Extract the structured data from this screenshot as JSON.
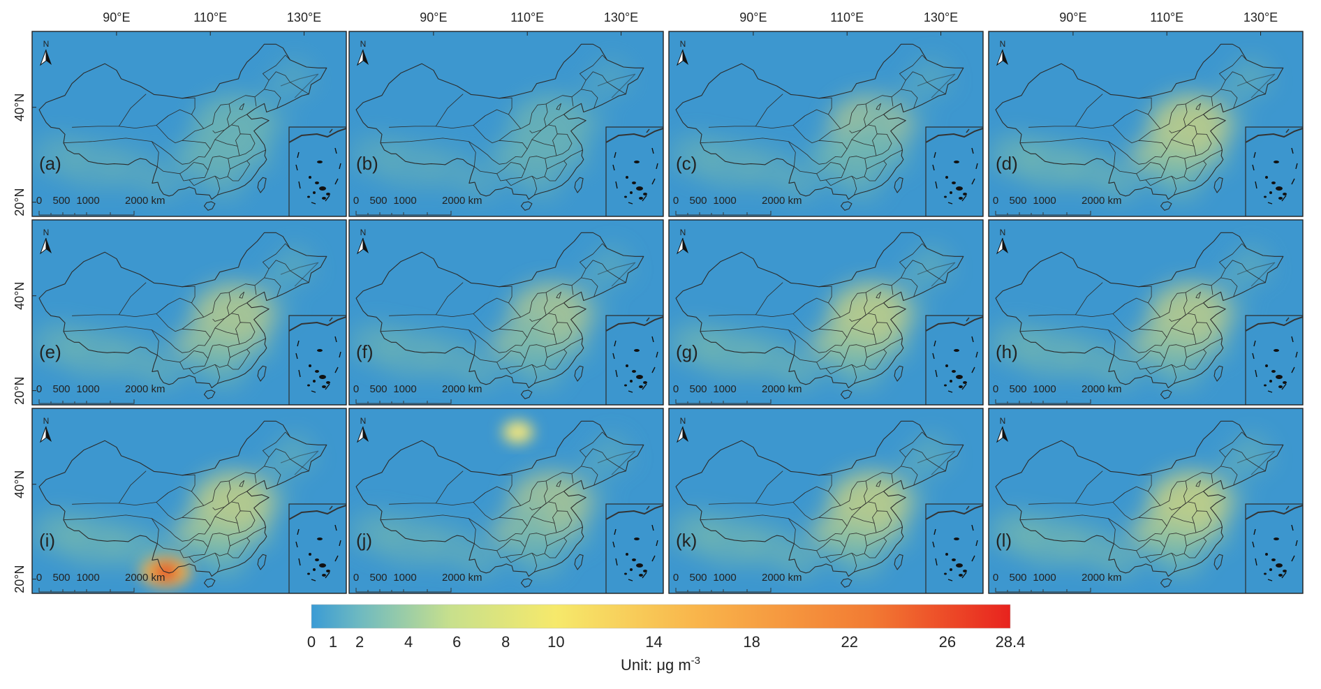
{
  "figure": {
    "lon_ticks": [
      "90°E",
      "110°E",
      "130°E"
    ],
    "lat_ticks": [
      "40°N",
      "20°N"
    ],
    "north_label": "N",
    "scale_bar": {
      "labels": [
        "0",
        "500",
        "1000",
        "2000 km"
      ]
    },
    "panels": [
      {
        "label": "(a)",
        "intensity": 0.3,
        "hotspots": []
      },
      {
        "label": "(b)",
        "intensity": 0.25,
        "hotspots": []
      },
      {
        "label": "(c)",
        "intensity": 0.38,
        "hotspots": []
      },
      {
        "label": "(d)",
        "intensity": 0.55,
        "hotspots": []
      },
      {
        "label": "(e)",
        "intensity": 0.45,
        "hotspots": []
      },
      {
        "label": "(f)",
        "intensity": 0.42,
        "hotspots": []
      },
      {
        "label": "(g)",
        "intensity": 0.55,
        "hotspots": []
      },
      {
        "label": "(h)",
        "intensity": 0.5,
        "hotspots": []
      },
      {
        "label": "(i)",
        "intensity": 0.55,
        "hotspots": [
          {
            "lon": 100.5,
            "lat": 21.5,
            "value": 28.4
          }
        ]
      },
      {
        "label": "(j)",
        "intensity": 0.4,
        "hotspots": [
          {
            "lon": 108,
            "lat": 51,
            "value": 9
          }
        ]
      },
      {
        "label": "(k)",
        "intensity": 0.55,
        "hotspots": []
      },
      {
        "label": "(l)",
        "intensity": 0.6,
        "hotspots": []
      }
    ]
  },
  "colorbar": {
    "min": 0,
    "max": 28.4,
    "tick_labels": [
      "0",
      "1",
      "2",
      "4",
      "6",
      "8",
      "10",
      "14",
      "18",
      "22",
      "26",
      "28.4"
    ],
    "unit_text": "Unit: μg m",
    "unit_superscript": "-3",
    "colors": [
      "#3a9bd5",
      "#7cc2b3",
      "#c9e08a",
      "#f5e96a",
      "#f8b24a",
      "#f07a32",
      "#e8231e"
    ]
  },
  "colors": {
    "sea": "#3d97cf",
    "land_low": "#4aa1c9",
    "land_mid": "#9bcf9a",
    "land_high": "#f0e36e",
    "hot": "#e3231c",
    "border": "#2b2b2b"
  }
}
